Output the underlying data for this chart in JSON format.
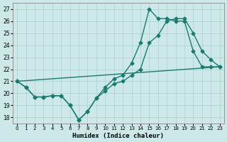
{
  "xlabel": "Humidex (Indice chaleur)",
  "bg_color": "#cce8e8",
  "line_color": "#1a7a6e",
  "grid_color": "#aacfcf",
  "xlim": [
    -0.5,
    23.5
  ],
  "ylim": [
    17.5,
    27.5
  ],
  "xticks": [
    0,
    1,
    2,
    3,
    4,
    5,
    6,
    7,
    8,
    9,
    10,
    11,
    12,
    13,
    14,
    15,
    16,
    17,
    18,
    19,
    20,
    21,
    22,
    23
  ],
  "yticks": [
    18,
    19,
    20,
    21,
    22,
    23,
    24,
    25,
    26,
    27
  ],
  "line1_x": [
    0,
    1,
    2,
    3,
    4,
    5,
    6,
    7,
    8,
    9,
    10,
    11,
    12,
    13,
    14,
    15,
    16,
    17,
    18,
    19,
    20,
    21,
    22,
    23
  ],
  "line1_y": [
    21.0,
    20.5,
    19.7,
    19.7,
    19.8,
    19.8,
    19.0,
    17.8,
    18.5,
    19.6,
    20.2,
    20.8,
    21.0,
    21.5,
    22.0,
    24.2,
    24.8,
    26.0,
    26.2,
    26.2,
    25.0,
    23.5,
    22.8,
    22.2
  ],
  "line2_x": [
    0,
    1,
    2,
    3,
    4,
    5,
    6,
    7,
    8,
    9,
    10,
    11,
    12,
    13,
    14,
    15,
    16,
    17,
    18,
    19,
    20,
    21,
    22,
    23
  ],
  "line2_y": [
    21.0,
    20.5,
    19.7,
    19.7,
    19.8,
    19.8,
    19.0,
    17.8,
    18.5,
    19.6,
    20.5,
    21.2,
    21.5,
    22.5,
    24.2,
    27.0,
    26.2,
    26.2,
    26.0,
    26.0,
    23.5,
    22.2,
    22.2,
    22.2
  ],
  "line3_x": [
    0,
    23
  ],
  "line3_y": [
    21.0,
    22.2
  ],
  "marker": "D",
  "markersize": 2.5,
  "linewidth": 1.0
}
